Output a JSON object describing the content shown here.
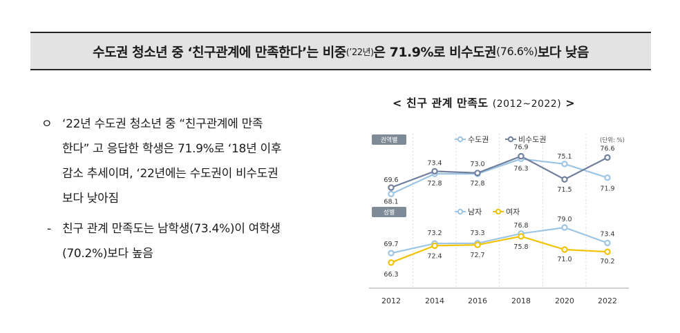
{
  "header": {
    "part1": "수도권 청소년 중 ‘친구관계에 만족한다’는 비중",
    "part2": "(’22년)",
    "part3": "은 71.9%로 비수도권",
    "part4": "(76.6%)",
    "part5": "보다 낮음"
  },
  "body": {
    "bullet_symbol": "ㅇ",
    "bullet_lines": [
      "‘22년 수도권 청소년 중 “친구관계에 만족",
      "한다” 고 응답한 학생은 71.9%로 ‘18년 이후",
      "감소 추세이며, ‘22년에는 수도권이 비수도권",
      "보다 낮아짐"
    ],
    "dash_symbol": "-",
    "dash_lines": [
      "친구 관계 만족도는 남학생(73.4%)이 여학생",
      "(70.2%)보다 높음"
    ]
  },
  "chart_title": {
    "main": "< 친구 관계 만족도",
    "range": "(2012~2022)",
    "close": ">"
  },
  "chart_data": {
    "type": "line",
    "x": [
      "2012",
      "2014",
      "2016",
      "2018",
      "2020",
      "2022"
    ],
    "unit_label": "(단위: %)",
    "panels": [
      {
        "tag": "권역별",
        "series": [
          {
            "name": "수도권",
            "color": "#9cc4e4",
            "values": [
              68.1,
              72.8,
              72.8,
              76.3,
              75.1,
              71.9
            ]
          },
          {
            "name": "비수도권",
            "color": "#6f7f9c",
            "values": [
              69.6,
              73.4,
              73.0,
              76.9,
              71.5,
              76.6
            ]
          }
        ]
      },
      {
        "tag": "성별",
        "series": [
          {
            "name": "남자",
            "color": "#9cc4e4",
            "values": [
              69.7,
              73.2,
              73.3,
              76.8,
              79.0,
              73.4
            ]
          },
          {
            "name": "여자",
            "color": "#f2c200",
            "values": [
              66.3,
              72.4,
              72.7,
              75.8,
              71.0,
              70.2
            ]
          }
        ]
      }
    ]
  }
}
